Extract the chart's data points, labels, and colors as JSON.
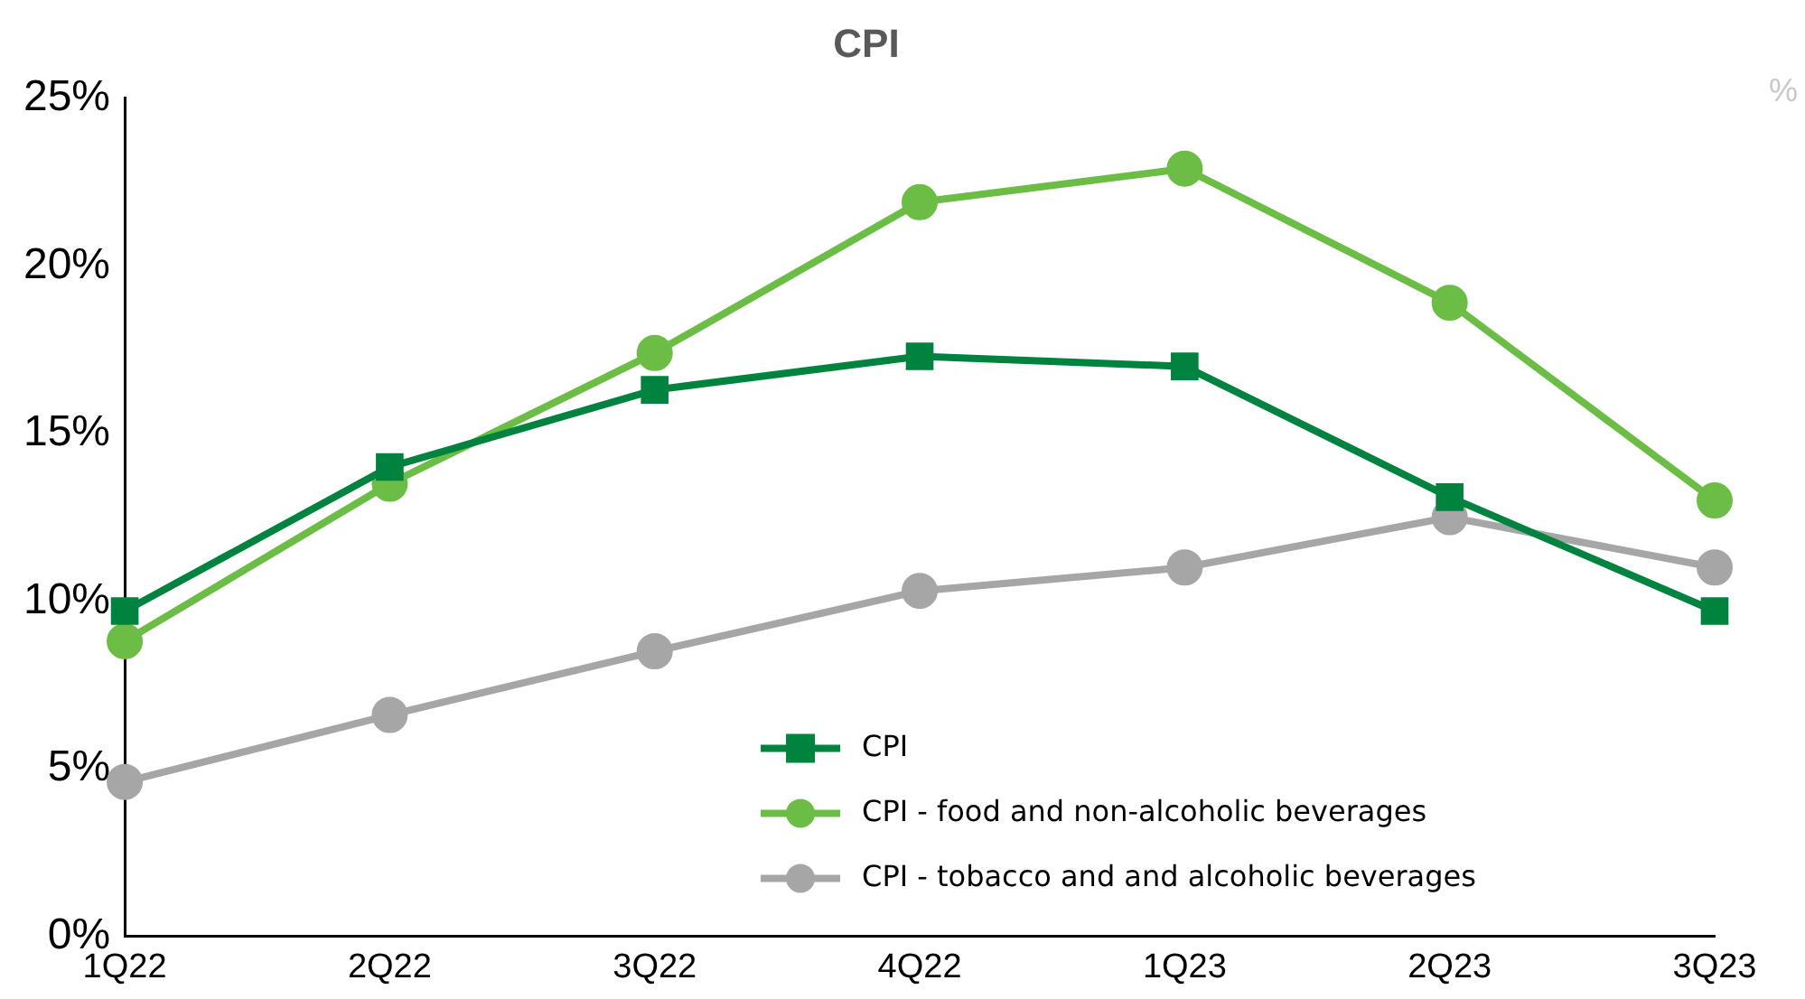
{
  "chart_data": {
    "type": "line",
    "title": "CPI",
    "annotations": [
      "%"
    ],
    "categories": [
      "1Q22",
      "2Q22",
      "3Q22",
      "4Q22",
      "1Q23",
      "2Q23",
      "3Q23"
    ],
    "series": [
      {
        "name": "CPI",
        "color": "#00833e",
        "marker": "square",
        "values": [
          9.7,
          14.0,
          16.3,
          17.3,
          17.0,
          13.1,
          9.7
        ]
      },
      {
        "name": "CPI - food and non-alcoholic beverages",
        "color": "#6cbd45",
        "marker": "circle",
        "values": [
          8.8,
          13.5,
          17.4,
          21.9,
          22.9,
          18.9,
          13.0
        ]
      },
      {
        "name": "CPI - tobacco and and alcoholic beverages",
        "color": "#a6a6a6",
        "marker": "circle",
        "values": [
          4.6,
          6.6,
          8.5,
          10.3,
          11.0,
          12.5,
          11.0
        ]
      }
    ],
    "ylim": [
      0,
      25
    ],
    "yticks": [
      {
        "value": 0,
        "label": "0%"
      },
      {
        "value": 5,
        "label": "5%"
      },
      {
        "value": 10,
        "label": "10%"
      },
      {
        "value": 15,
        "label": "15%"
      },
      {
        "value": 20,
        "label": "20%"
      },
      {
        "value": 25,
        "label": "25%"
      }
    ],
    "grid": false,
    "legend": "bottom",
    "line_style": "solid"
  }
}
